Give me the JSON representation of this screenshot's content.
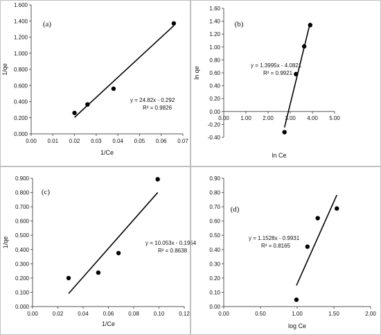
{
  "figure": {
    "panels": [
      "a",
      "b",
      "c",
      "d"
    ]
  },
  "chart_data": [
    {
      "id": "a",
      "type": "scatter",
      "panel_label": "(a)",
      "xlabel": "1/Ce",
      "ylabel": "1/qe",
      "xlim": [
        0,
        0.07
      ],
      "ylim": [
        0,
        1.6
      ],
      "xticks": [
        "0.00",
        "0.01",
        "0.02",
        "0.03",
        "0.04",
        "0.05",
        "0.06",
        "0.07"
      ],
      "yticks": [
        "0.000",
        "0.200",
        "0.400",
        "0.600",
        "0.800",
        "1.000",
        "1.200",
        "1.400",
        "1.600"
      ],
      "points": [
        {
          "x": 0.02,
          "y": 0.26
        },
        {
          "x": 0.026,
          "y": 0.365
        },
        {
          "x": 0.038,
          "y": 0.56
        },
        {
          "x": 0.0658,
          "y": 1.37
        }
      ],
      "trendline": {
        "slope": 24.82,
        "intercept": -0.292,
        "x_range": [
          0.02,
          0.0658
        ]
      },
      "equation": "y = 24.82x - 0.292",
      "r2": "R² = 0.9826"
    },
    {
      "id": "b",
      "type": "scatter",
      "panel_label": "(b)",
      "xlabel": "ln Ce",
      "ylabel": "ln qe",
      "xlim": [
        0,
        5
      ],
      "ylim": [
        -0.4,
        1.6
      ],
      "xticks": [
        "0.00",
        "1.00",
        "2.00",
        "3.00",
        "4.00",
        "5.00"
      ],
      "yticks": [
        "-0.40",
        "-0.20",
        "0.00",
        "0.20",
        "0.40",
        "0.60",
        "0.80",
        "1.00",
        "1.20",
        "1.40",
        "1.60"
      ],
      "points": [
        {
          "x": 2.74,
          "y": -0.32
        },
        {
          "x": 3.26,
          "y": 0.58
        },
        {
          "x": 3.63,
          "y": 1.01
        },
        {
          "x": 3.9,
          "y": 1.34
        }
      ],
      "trendline": {
        "slope": 1.3995,
        "intercept": -4.0821,
        "x_range": [
          2.74,
          3.9
        ]
      },
      "equation": "y = 1.3995x - 4.0821",
      "r2": "R² = 0.9921"
    },
    {
      "id": "c",
      "type": "scatter",
      "panel_label": "(c)",
      "xlabel": "1/Ce",
      "ylabel": "1/qe",
      "xlim": [
        0,
        0.12
      ],
      "ylim": [
        0,
        0.9
      ],
      "xticks": [
        "0.00",
        "0.02",
        "0.04",
        "0.06",
        "0.08",
        "0.10",
        "0.12"
      ],
      "yticks": [
        "0.000",
        "0.100",
        "0.200",
        "0.300",
        "0.400",
        "0.500",
        "0.600",
        "0.700",
        "0.800",
        "0.900"
      ],
      "points": [
        {
          "x": 0.0285,
          "y": 0.2
        },
        {
          "x": 0.052,
          "y": 0.238
        },
        {
          "x": 0.068,
          "y": 0.375
        },
        {
          "x": 0.099,
          "y": 0.893
        }
      ],
      "trendline": {
        "slope": 10.053,
        "intercept": -0.1954,
        "x_range": [
          0.0285,
          0.099
        ]
      },
      "equation": "y = 10.053x - 0.1954",
      "r2": "R² = 0.8638"
    },
    {
      "id": "d",
      "type": "scatter",
      "panel_label": "(d)",
      "xlabel": "log Ce",
      "ylabel": "",
      "xlim": [
        0,
        2
      ],
      "ylim": [
        0,
        0.9
      ],
      "xticks": [
        "0.00",
        "0.50",
        "1.00",
        "1.50",
        "2.00"
      ],
      "yticks": [
        "0.00",
        "0.10",
        "0.20",
        "0.30",
        "0.40",
        "0.50",
        "0.60",
        "0.70",
        "0.80",
        "0.90"
      ],
      "points": [
        {
          "x": 0.99,
          "y": 0.048
        },
        {
          "x": 1.14,
          "y": 0.42
        },
        {
          "x": 1.28,
          "y": 0.62
        },
        {
          "x": 1.54,
          "y": 0.688
        }
      ],
      "trendline": {
        "slope": 1.1528,
        "intercept": -0.9931,
        "x_range": [
          0.99,
          1.54
        ]
      },
      "equation": "y = 1.1528x - 0.9931",
      "r2": "R² = 0.8165"
    }
  ]
}
